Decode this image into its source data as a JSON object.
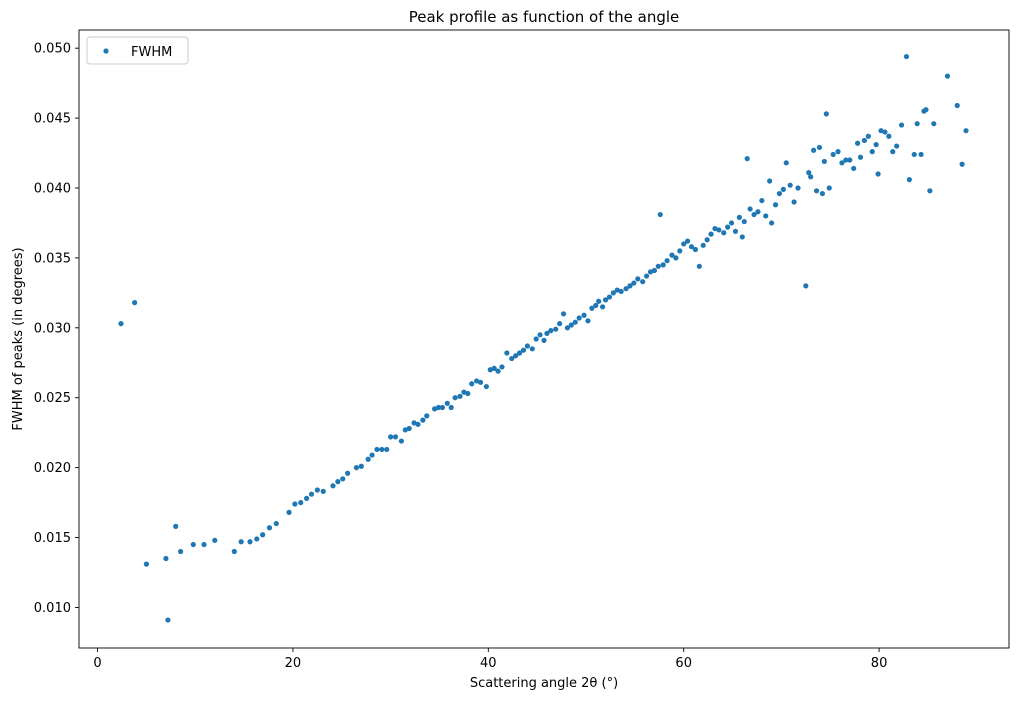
{
  "chart_data": {
    "type": "scatter",
    "title": "Peak profile as function of the angle",
    "xlabel": "Scattering angle 2θ (°)",
    "ylabel": "FWHM of peaks (in degrees)",
    "xlim": [
      -1.9,
      93.3
    ],
    "ylim": [
      0.0071,
      0.0513
    ],
    "xticks": [
      0,
      20,
      40,
      60,
      80
    ],
    "xtick_labels": [
      "0",
      "20",
      "40",
      "60",
      "80"
    ],
    "yticks": [
      0.01,
      0.015,
      0.02,
      0.025,
      0.03,
      0.035,
      0.04,
      0.045,
      0.05
    ],
    "ytick_labels": [
      "0.010",
      "0.015",
      "0.020",
      "0.025",
      "0.030",
      "0.035",
      "0.040",
      "0.045",
      "0.050"
    ],
    "grid": false,
    "legend": {
      "position": "top-left",
      "entries": [
        "FWHM"
      ]
    },
    "series": [
      {
        "name": "FWHM",
        "color": "#1f77b4",
        "marker": "circle",
        "points": [
          [
            2.4,
            0.0303
          ],
          [
            3.8,
            0.0318
          ],
          [
            5.0,
            0.0131
          ],
          [
            7.0,
            0.0135
          ],
          [
            7.2,
            0.0091
          ],
          [
            8.0,
            0.0158
          ],
          [
            8.5,
            0.014
          ],
          [
            9.8,
            0.0145
          ],
          [
            10.9,
            0.0145
          ],
          [
            12.0,
            0.0148
          ],
          [
            14.0,
            0.014
          ],
          [
            14.7,
            0.0147
          ],
          [
            15.6,
            0.0147
          ],
          [
            16.3,
            0.0149
          ],
          [
            16.9,
            0.0152
          ],
          [
            17.6,
            0.0157
          ],
          [
            18.3,
            0.016
          ],
          [
            19.6,
            0.0168
          ],
          [
            20.2,
            0.0174
          ],
          [
            20.8,
            0.0175
          ],
          [
            21.4,
            0.0178
          ],
          [
            21.9,
            0.0181
          ],
          [
            22.5,
            0.0184
          ],
          [
            23.1,
            0.0183
          ],
          [
            24.1,
            0.0187
          ],
          [
            24.6,
            0.019
          ],
          [
            25.1,
            0.0192
          ],
          [
            25.6,
            0.0196
          ],
          [
            26.5,
            0.02
          ],
          [
            27.0,
            0.0201
          ],
          [
            27.7,
            0.0206
          ],
          [
            28.1,
            0.0209
          ],
          [
            28.6,
            0.0213
          ],
          [
            29.1,
            0.0213
          ],
          [
            29.6,
            0.0213
          ],
          [
            30.0,
            0.0222
          ],
          [
            30.5,
            0.0222
          ],
          [
            31.1,
            0.0219
          ],
          [
            31.5,
            0.0227
          ],
          [
            31.9,
            0.0228
          ],
          [
            32.4,
            0.0232
          ],
          [
            32.8,
            0.0231
          ],
          [
            33.3,
            0.0234
          ],
          [
            33.7,
            0.0237
          ],
          [
            34.5,
            0.0242
          ],
          [
            34.9,
            0.0243
          ],
          [
            35.3,
            0.0243
          ],
          [
            35.8,
            0.0246
          ],
          [
            36.2,
            0.0243
          ],
          [
            36.6,
            0.025
          ],
          [
            37.1,
            0.0251
          ],
          [
            37.5,
            0.0254
          ],
          [
            37.9,
            0.0253
          ],
          [
            38.3,
            0.026
          ],
          [
            38.8,
            0.0262
          ],
          [
            39.2,
            0.0261
          ],
          [
            39.8,
            0.0258
          ],
          [
            40.2,
            0.027
          ],
          [
            40.6,
            0.0271
          ],
          [
            41.0,
            0.0269
          ],
          [
            41.4,
            0.0272
          ],
          [
            41.9,
            0.0282
          ],
          [
            42.4,
            0.0278
          ],
          [
            42.8,
            0.028
          ],
          [
            43.2,
            0.0282
          ],
          [
            43.6,
            0.0284
          ],
          [
            44.0,
            0.0287
          ],
          [
            44.5,
            0.0285
          ],
          [
            44.9,
            0.0292
          ],
          [
            45.3,
            0.0295
          ],
          [
            45.7,
            0.0291
          ],
          [
            46.0,
            0.0296
          ],
          [
            46.4,
            0.0298
          ],
          [
            46.9,
            0.0299
          ],
          [
            47.3,
            0.0303
          ],
          [
            47.7,
            0.031
          ],
          [
            48.1,
            0.03
          ],
          [
            48.5,
            0.0302
          ],
          [
            48.9,
            0.0304
          ],
          [
            49.3,
            0.0307
          ],
          [
            49.8,
            0.0309
          ],
          [
            50.2,
            0.0305
          ],
          [
            50.6,
            0.0314
          ],
          [
            51.0,
            0.0316
          ],
          [
            51.3,
            0.0319
          ],
          [
            51.7,
            0.0315
          ],
          [
            52.0,
            0.032
          ],
          [
            52.4,
            0.0322
          ],
          [
            52.8,
            0.0325
          ],
          [
            53.2,
            0.0327
          ],
          [
            53.6,
            0.0326
          ],
          [
            54.1,
            0.0328
          ],
          [
            54.5,
            0.033
          ],
          [
            54.9,
            0.0332
          ],
          [
            55.3,
            0.0335
          ],
          [
            55.8,
            0.0333
          ],
          [
            56.2,
            0.0337
          ],
          [
            56.6,
            0.034
          ],
          [
            57.0,
            0.0341
          ],
          [
            57.4,
            0.0344
          ],
          [
            57.6,
            0.0381
          ],
          [
            57.9,
            0.0345
          ],
          [
            58.3,
            0.0348
          ],
          [
            58.8,
            0.0352
          ],
          [
            59.2,
            0.035
          ],
          [
            59.6,
            0.0355
          ],
          [
            60.0,
            0.036
          ],
          [
            60.4,
            0.0362
          ],
          [
            60.8,
            0.0358
          ],
          [
            61.2,
            0.0356
          ],
          [
            61.6,
            0.0344
          ],
          [
            62.0,
            0.0359
          ],
          [
            62.4,
            0.0363
          ],
          [
            62.8,
            0.0367
          ],
          [
            63.2,
            0.0371
          ],
          [
            63.6,
            0.037
          ],
          [
            64.1,
            0.0368
          ],
          [
            64.5,
            0.0372
          ],
          [
            64.9,
            0.0375
          ],
          [
            65.3,
            0.0369
          ],
          [
            65.7,
            0.0379
          ],
          [
            66.0,
            0.0365
          ],
          [
            66.2,
            0.0376
          ],
          [
            66.5,
            0.0421
          ],
          [
            66.8,
            0.0385
          ],
          [
            67.2,
            0.0381
          ],
          [
            67.6,
            0.0383
          ],
          [
            68.0,
            0.0391
          ],
          [
            68.4,
            0.038
          ],
          [
            68.8,
            0.0405
          ],
          [
            69.0,
            0.0375
          ],
          [
            69.4,
            0.0388
          ],
          [
            69.8,
            0.0396
          ],
          [
            70.2,
            0.0399
          ],
          [
            70.5,
            0.0418
          ],
          [
            70.9,
            0.0402
          ],
          [
            71.3,
            0.039
          ],
          [
            71.7,
            0.04
          ],
          [
            72.5,
            0.033
          ],
          [
            72.8,
            0.0411
          ],
          [
            73.0,
            0.0408
          ],
          [
            73.3,
            0.0427
          ],
          [
            73.6,
            0.0398
          ],
          [
            73.9,
            0.0429
          ],
          [
            74.2,
            0.0396
          ],
          [
            74.4,
            0.0419
          ],
          [
            74.6,
            0.0453
          ],
          [
            74.9,
            0.04
          ],
          [
            75.3,
            0.0424
          ],
          [
            75.8,
            0.0426
          ],
          [
            76.2,
            0.0418
          ],
          [
            76.6,
            0.042
          ],
          [
            77.0,
            0.042
          ],
          [
            77.4,
            0.0414
          ],
          [
            77.8,
            0.0432
          ],
          [
            78.1,
            0.0422
          ],
          [
            78.5,
            0.0434
          ],
          [
            78.9,
            0.0437
          ],
          [
            79.3,
            0.0426
          ],
          [
            79.7,
            0.0431
          ],
          [
            79.9,
            0.041
          ],
          [
            80.2,
            0.0441
          ],
          [
            80.6,
            0.044
          ],
          [
            81.0,
            0.0437
          ],
          [
            81.4,
            0.0426
          ],
          [
            81.8,
            0.043
          ],
          [
            82.3,
            0.0445
          ],
          [
            82.8,
            0.0494
          ],
          [
            83.1,
            0.0406
          ],
          [
            83.6,
            0.0424
          ],
          [
            83.9,
            0.0446
          ],
          [
            84.3,
            0.0424
          ],
          [
            84.6,
            0.0455
          ],
          [
            84.8,
            0.0456
          ],
          [
            85.2,
            0.0398
          ],
          [
            85.6,
            0.0446
          ],
          [
            87.0,
            0.048
          ],
          [
            88.0,
            0.0459
          ],
          [
            88.5,
            0.0417
          ],
          [
            88.9,
            0.0441
          ]
        ]
      }
    ]
  }
}
